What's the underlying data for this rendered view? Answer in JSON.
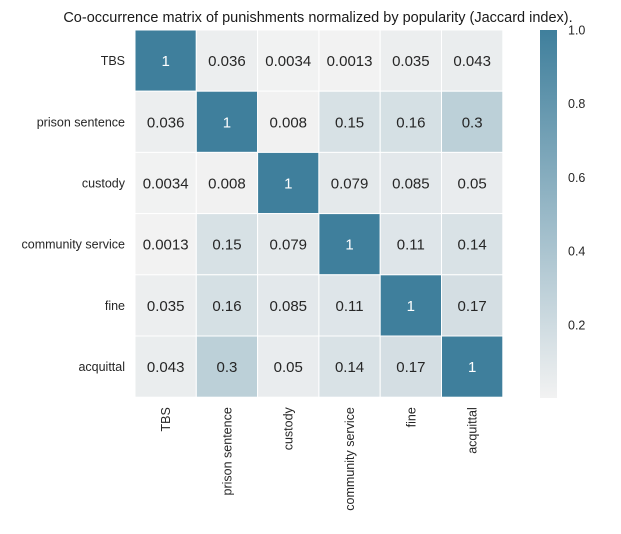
{
  "chart_data": {
    "type": "heatmap",
    "title": "Co-occurrence matrix of punishments normalized by popularity (Jaccard index).",
    "row_labels": [
      "TBS",
      "prison sentence",
      "custody",
      "community service",
      "fine",
      "acquittal"
    ],
    "col_labels": [
      "TBS",
      "prison sentence",
      "custody",
      "community service",
      "fine",
      "acquittal"
    ],
    "values": [
      [
        1,
        0.036,
        0.0034,
        0.0013,
        0.035,
        0.043
      ],
      [
        0.036,
        1,
        0.008,
        0.15,
        0.16,
        0.3
      ],
      [
        0.0034,
        0.008,
        1,
        0.079,
        0.085,
        0.05
      ],
      [
        0.0013,
        0.15,
        0.079,
        1,
        0.11,
        0.14
      ],
      [
        0.035,
        0.16,
        0.085,
        0.11,
        1,
        0.17
      ],
      [
        0.043,
        0.3,
        0.05,
        0.14,
        0.17,
        1
      ]
    ],
    "cell_labels": [
      [
        "1",
        "0.036",
        "0.0034",
        "0.0013",
        "0.035",
        "0.043"
      ],
      [
        "0.036",
        "1",
        "0.008",
        "0.15",
        "0.16",
        "0.3"
      ],
      [
        "0.0034",
        "0.008",
        "1",
        "0.079",
        "0.085",
        "0.05"
      ],
      [
        "0.0013",
        "0.15",
        "0.079",
        "1",
        "0.11",
        "0.14"
      ],
      [
        "0.035",
        "0.16",
        "0.085",
        "0.11",
        "1",
        "0.17"
      ],
      [
        "0.043",
        "0.3",
        "0.05",
        "0.14",
        "0.17",
        "1"
      ]
    ],
    "vmin": 0,
    "vmax": 1,
    "colorbar": {
      "ticks": [
        0.2,
        0.4,
        0.6,
        0.8,
        1.0
      ],
      "tick_labels": [
        "0.2",
        "0.4",
        "0.6",
        "0.8",
        "1.0"
      ]
    },
    "colors": {
      "low": "#f2f2f2",
      "high": "#3f7f9c",
      "label_dark": "#262626",
      "label_light": "#ffffff",
      "cell_border": "#ffffff"
    }
  }
}
